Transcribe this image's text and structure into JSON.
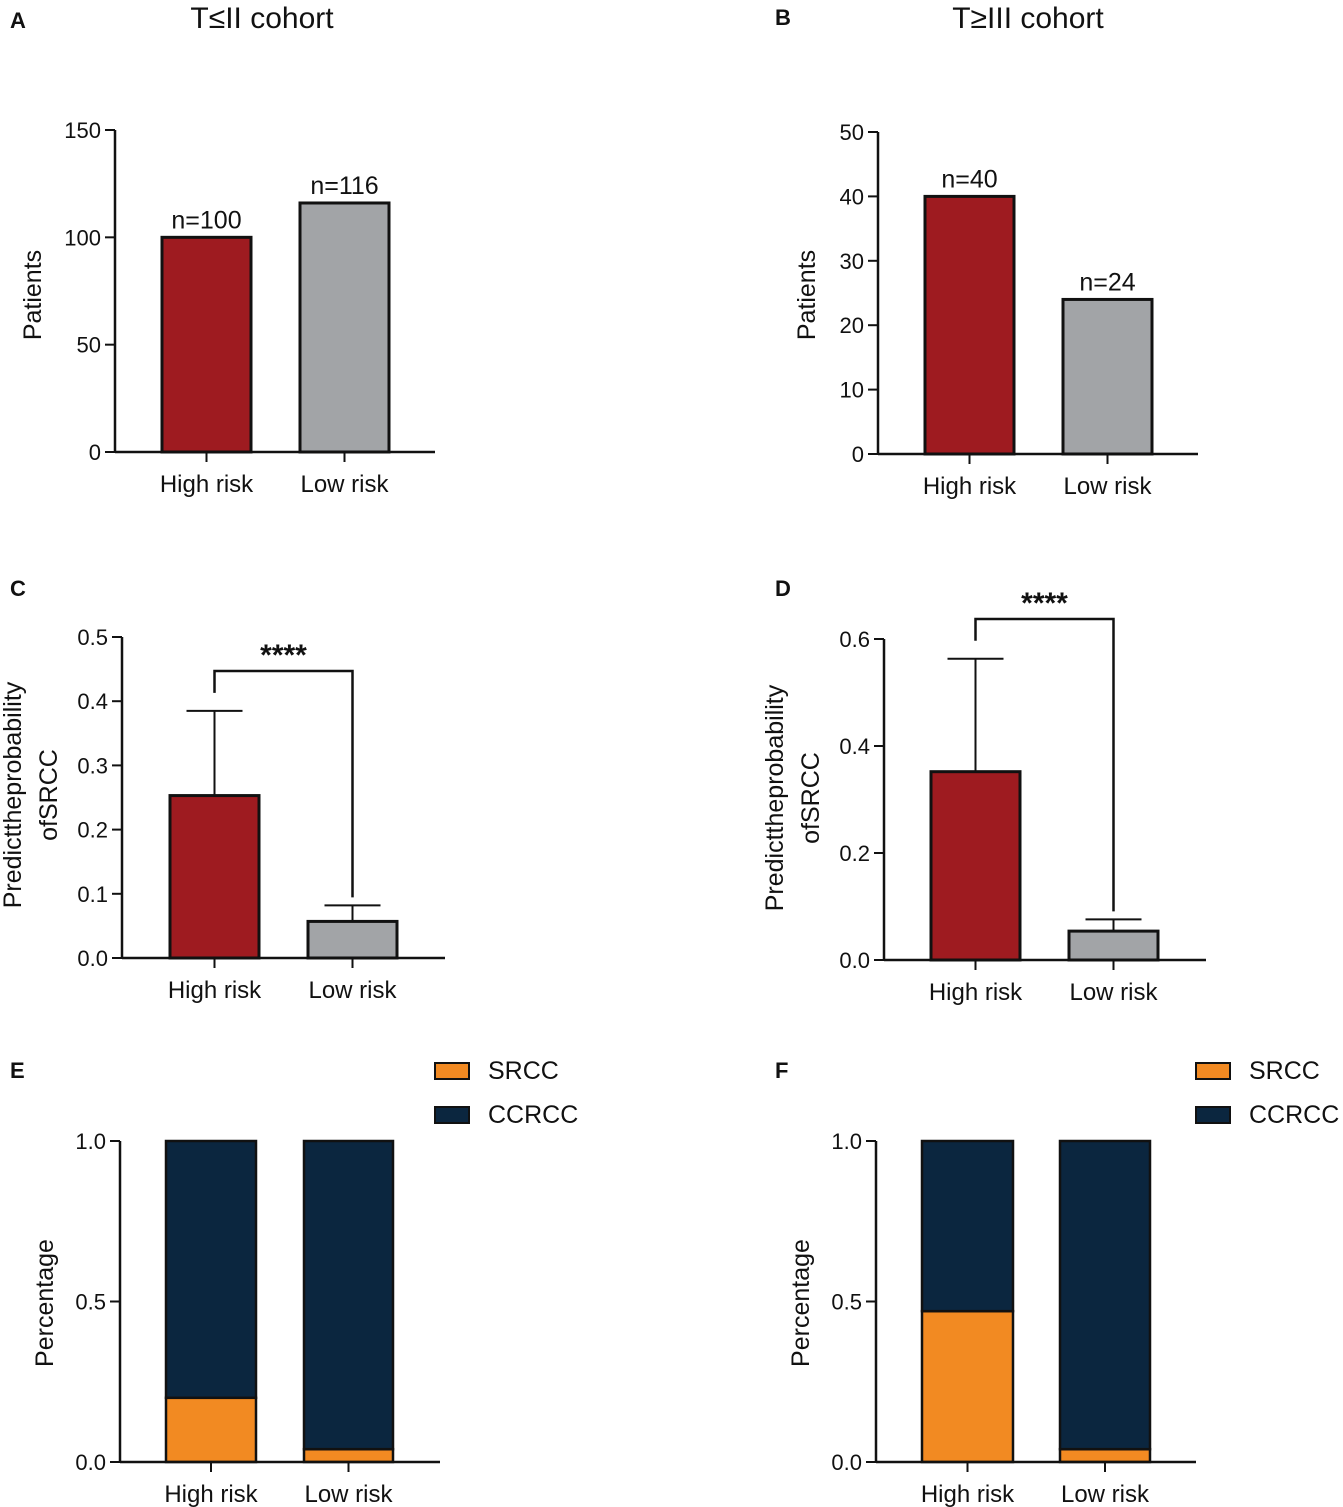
{
  "colors": {
    "high": "#9e1b20",
    "low": "#a2a4a7",
    "srcc": "#f28a22",
    "ccrcc": "#0b263f",
    "axis": "#111111"
  },
  "chart_data": [
    {
      "panel": "A",
      "type": "bar",
      "title": "T≤II cohort",
      "categories": [
        "High risk",
        "Low risk"
      ],
      "values": [
        100,
        116
      ],
      "data_labels": [
        "n=100",
        "n=116"
      ],
      "ylabel": "Patients",
      "ylim": [
        0,
        150
      ],
      "yticks": [
        0,
        50,
        100,
        150
      ]
    },
    {
      "panel": "B",
      "type": "bar",
      "title": "T≥III cohort",
      "categories": [
        "High risk",
        "Low risk"
      ],
      "values": [
        40,
        24
      ],
      "data_labels": [
        "n=40",
        "n=24"
      ],
      "ylabel": "Patients",
      "ylim": [
        0,
        50
      ],
      "yticks": [
        0,
        10,
        20,
        30,
        40,
        50
      ]
    },
    {
      "panel": "C",
      "type": "bar",
      "categories": [
        "High risk",
        "Low risk"
      ],
      "values": [
        0.253,
        0.057
      ],
      "error_upper": [
        0.385,
        0.082
      ],
      "significance": "****",
      "ylabel_lines": [
        "Predicttheprobability",
        "ofSRCC"
      ],
      "ylim": [
        0,
        0.5
      ],
      "yticks": [
        "0.0",
        "0.1",
        "0.2",
        "0.3",
        "0.4",
        "0.5"
      ]
    },
    {
      "panel": "D",
      "type": "bar",
      "categories": [
        "High risk",
        "Low risk"
      ],
      "values": [
        0.352,
        0.054
      ],
      "error_upper": [
        0.563,
        0.076
      ],
      "significance": "****",
      "ylabel_lines": [
        "Predicttheprobability",
        "ofSRCC"
      ],
      "ylim": [
        0,
        0.6
      ],
      "yticks": [
        "0.0",
        "0.2",
        "0.4",
        "0.6"
      ]
    },
    {
      "panel": "E",
      "type": "stacked-bar",
      "categories": [
        "High risk",
        "Low risk"
      ],
      "series": [
        {
          "name": "SRCC",
          "values": [
            0.2,
            0.04
          ]
        },
        {
          "name": "CCRCC",
          "values": [
            0.8,
            0.96
          ]
        }
      ],
      "ylabel": "Percentage",
      "ylim": [
        0,
        1.0
      ],
      "yticks": [
        "0.0",
        "0.5",
        "1.0"
      ]
    },
    {
      "panel": "F",
      "type": "stacked-bar",
      "categories": [
        "High risk",
        "Low risk"
      ],
      "series": [
        {
          "name": "SRCC",
          "values": [
            0.47,
            0.04
          ]
        },
        {
          "name": "CCRCC",
          "values": [
            0.53,
            0.96
          ]
        }
      ],
      "ylabel": "Percentage",
      "ylim": [
        0,
        1.0
      ],
      "yticks": [
        "0.0",
        "0.5",
        "1.0"
      ]
    }
  ]
}
